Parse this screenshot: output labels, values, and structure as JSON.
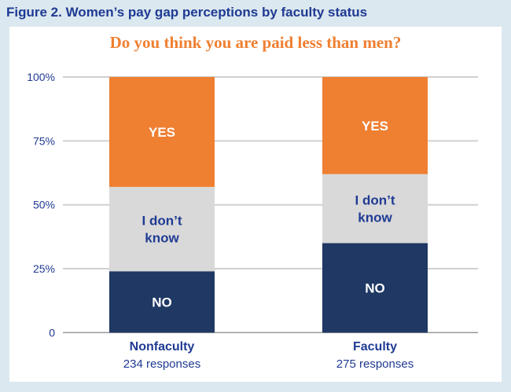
{
  "chart_data": {
    "type": "bar",
    "stacked": true,
    "title": "Figure 2. Women’s pay gap perceptions by faculty status",
    "subtitle": "Do you think you are paid less than men?",
    "categories": [
      "Nonfaculty",
      "Faculty"
    ],
    "category_sublabels": [
      "234 responses",
      "275 responses"
    ],
    "series": [
      {
        "name": "NO",
        "label_lines": [
          "NO"
        ],
        "color": "#1f3864",
        "text_color": "#ffffff",
        "values": [
          24,
          35
        ]
      },
      {
        "name": "I don’t know",
        "label_lines": [
          "I don’t",
          "know"
        ],
        "color": "#d9d9d9",
        "text_color": "#1f3a93",
        "values": [
          33,
          27
        ]
      },
      {
        "name": "YES",
        "label_lines": [
          "YES"
        ],
        "color": "#ef7f31",
        "text_color": "#ffffff",
        "values": [
          43,
          38
        ]
      }
    ],
    "yticks": [
      0,
      25,
      50,
      75,
      100
    ],
    "ytick_labels": [
      "0",
      "25%",
      "50%",
      "75%",
      "100%"
    ],
    "ylim": [
      0,
      100
    ],
    "grid": true
  }
}
